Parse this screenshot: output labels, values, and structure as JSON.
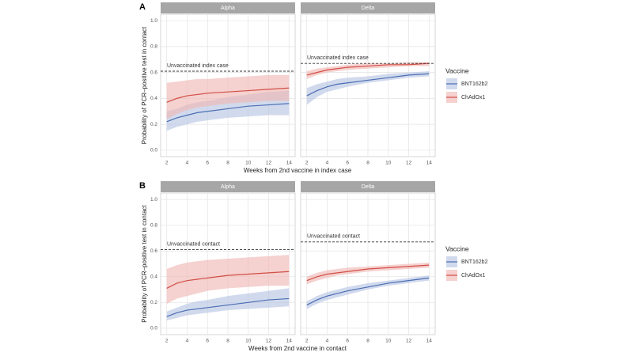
{
  "chart_data": [
    {
      "type": "line",
      "label": "A",
      "x_label": "Weeks from 2nd vaccine in index case",
      "y_label": "Probability of PCR–positive test in contact",
      "legend_title": "Vaccine",
      "x": [
        2,
        3,
        4,
        5,
        6,
        8,
        10,
        12,
        14
      ],
      "xlim": [
        1.4,
        14.6
      ],
      "xticks": [
        2,
        4,
        6,
        8,
        10,
        12,
        14
      ],
      "ylim": [
        -0.05,
        1.05
      ],
      "yticks": [
        {
          "value": 0,
          "label": "0.0"
        },
        0.2,
        0.4,
        0.6,
        0.8,
        {
          "value": 1,
          "label": "1.0"
        }
      ],
      "grid": true,
      "facets": [
        {
          "title": "Alpha",
          "reference": {
            "value": 0.61,
            "label": "Unvaccinated index case"
          },
          "series": [
            {
              "name": "BNT162b2",
              "color": "#4b6db3",
              "band_color": "#b9c6e3",
              "values": [
                0.22,
                0.25,
                0.27,
                0.29,
                0.3,
                0.32,
                0.34,
                0.35,
                0.36
              ],
              "lower": [
                0.15,
                0.18,
                0.2,
                0.22,
                0.23,
                0.25,
                0.26,
                0.27,
                0.27
              ],
              "upper": [
                0.3,
                0.32,
                0.35,
                0.37,
                0.38,
                0.41,
                0.43,
                0.45,
                0.46
              ]
            },
            {
              "name": "ChAdOx1",
              "color": "#d24e45",
              "band_color": "#f0b9b5",
              "values": [
                0.37,
                0.4,
                0.42,
                0.43,
                0.44,
                0.45,
                0.46,
                0.47,
                0.48
              ],
              "lower": [
                0.24,
                0.28,
                0.31,
                0.33,
                0.34,
                0.36,
                0.37,
                0.38,
                0.38
              ],
              "upper": [
                0.52,
                0.53,
                0.54,
                0.55,
                0.55,
                0.56,
                0.57,
                0.58,
                0.58
              ]
            }
          ]
        },
        {
          "title": "Delta",
          "reference": {
            "value": 0.67,
            "label": "Unvaccinated index case"
          },
          "series": [
            {
              "name": "BNT162b2",
              "color": "#4b6db3",
              "band_color": "#b9c6e3",
              "values": [
                0.42,
                0.46,
                0.49,
                0.51,
                0.52,
                0.54,
                0.56,
                0.58,
                0.59
              ],
              "lower": [
                0.35,
                0.41,
                0.45,
                0.47,
                0.49,
                0.52,
                0.54,
                0.56,
                0.57
              ],
              "upper": [
                0.48,
                0.51,
                0.53,
                0.55,
                0.56,
                0.57,
                0.59,
                0.6,
                0.61
              ]
            },
            {
              "name": "ChAdOx1",
              "color": "#d24e45",
              "band_color": "#f0b9b5",
              "values": [
                0.58,
                0.6,
                0.62,
                0.63,
                0.64,
                0.65,
                0.66,
                0.66,
                0.67
              ],
              "lower": [
                0.55,
                0.58,
                0.6,
                0.61,
                0.62,
                0.63,
                0.64,
                0.65,
                0.65
              ],
              "upper": [
                0.61,
                0.63,
                0.64,
                0.65,
                0.66,
                0.67,
                0.67,
                0.68,
                0.68
              ]
            }
          ]
        }
      ]
    },
    {
      "type": "line",
      "label": "B",
      "x_label": "Weeks from 2nd vaccine in contact",
      "y_label": "Probability of PCR–positive test in contact",
      "legend_title": "Vaccine",
      "x": [
        2,
        3,
        4,
        5,
        6,
        8,
        10,
        12,
        14
      ],
      "xlim": [
        1.4,
        14.6
      ],
      "xticks": [
        2,
        4,
        6,
        8,
        10,
        12,
        14
      ],
      "ylim": [
        -0.05,
        1.05
      ],
      "yticks": [
        {
          "value": 0,
          "label": "0.0"
        },
        0.2,
        0.4,
        0.6,
        0.8,
        {
          "value": 1,
          "label": "1.0"
        }
      ],
      "grid": true,
      "facets": [
        {
          "title": "Alpha",
          "reference": {
            "value": 0.61,
            "label": "Unvaccinated contact"
          },
          "series": [
            {
              "name": "BNT162b2",
              "color": "#4b6db3",
              "band_color": "#b9c6e3",
              "values": [
                0.09,
                0.12,
                0.14,
                0.15,
                0.16,
                0.18,
                0.2,
                0.22,
                0.23
              ],
              "lower": [
                0.06,
                0.08,
                0.1,
                0.11,
                0.12,
                0.14,
                0.15,
                0.16,
                0.17
              ],
              "upper": [
                0.13,
                0.16,
                0.19,
                0.21,
                0.22,
                0.25,
                0.27,
                0.29,
                0.31
              ]
            },
            {
              "name": "ChAdOx1",
              "color": "#d24e45",
              "band_color": "#f0b9b5",
              "values": [
                0.31,
                0.35,
                0.37,
                0.38,
                0.39,
                0.41,
                0.42,
                0.43,
                0.44
              ],
              "lower": [
                0.19,
                0.23,
                0.25,
                0.27,
                0.29,
                0.31,
                0.32,
                0.33,
                0.33
              ],
              "upper": [
                0.46,
                0.49,
                0.51,
                0.52,
                0.53,
                0.54,
                0.55,
                0.56,
                0.57
              ]
            }
          ]
        },
        {
          "title": "Delta",
          "reference": {
            "value": 0.67,
            "label": "Unvaccinated contact"
          },
          "series": [
            {
              "name": "BNT162b2",
              "color": "#4b6db3",
              "band_color": "#b9c6e3",
              "values": [
                0.18,
                0.22,
                0.25,
                0.27,
                0.29,
                0.32,
                0.35,
                0.37,
                0.39
              ],
              "lower": [
                0.15,
                0.19,
                0.22,
                0.24,
                0.26,
                0.3,
                0.33,
                0.35,
                0.37
              ],
              "upper": [
                0.21,
                0.25,
                0.28,
                0.3,
                0.32,
                0.35,
                0.37,
                0.39,
                0.41
              ]
            },
            {
              "name": "ChAdOx1",
              "color": "#d24e45",
              "band_color": "#f0b9b5",
              "values": [
                0.37,
                0.4,
                0.42,
                0.43,
                0.44,
                0.46,
                0.47,
                0.48,
                0.49
              ],
              "lower": [
                0.34,
                0.37,
                0.39,
                0.41,
                0.42,
                0.44,
                0.45,
                0.46,
                0.47
              ],
              "upper": [
                0.4,
                0.43,
                0.45,
                0.46,
                0.47,
                0.48,
                0.49,
                0.5,
                0.51
              ]
            }
          ]
        }
      ]
    }
  ]
}
